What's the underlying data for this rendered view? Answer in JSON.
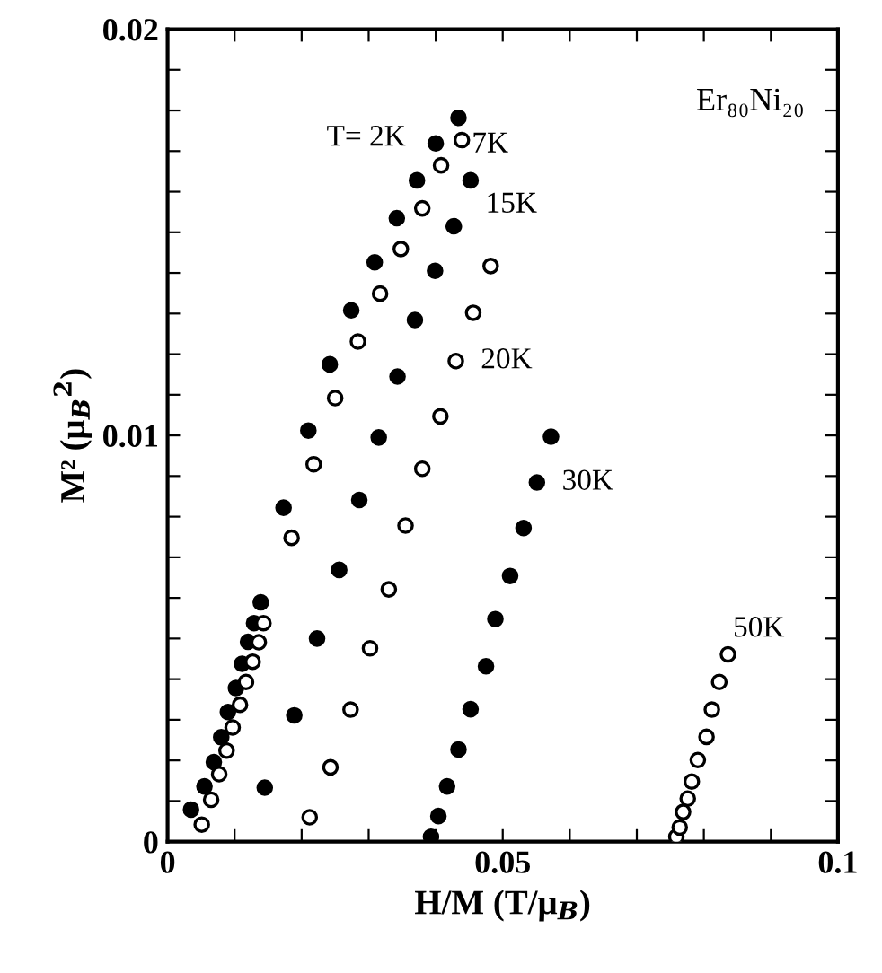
{
  "chart_data": {
    "type": "scatter",
    "xlabel": "H/M (T/μ$_{B}$)",
    "ylabel": "M² (μ$_{B}$$^{2}$)",
    "marker": "circle",
    "grid": false,
    "annotations": [
      "Er₈₀Ni₂₀"
    ],
    "xlim": [
      0,
      0.1
    ],
    "ylim": [
      0,
      0.02
    ],
    "xticks": [
      {
        "value": 0,
        "label": "0"
      },
      {
        "value": 0.01,
        "label": null
      },
      {
        "value": 0.02,
        "label": null
      },
      {
        "value": 0.03,
        "label": null
      },
      {
        "value": 0.04,
        "label": null
      },
      {
        "value": 0.05,
        "label": "0.05"
      },
      {
        "value": 0.06,
        "label": null
      },
      {
        "value": 0.07,
        "label": null
      },
      {
        "value": 0.08,
        "label": null
      },
      {
        "value": 0.09,
        "label": null
      },
      {
        "value": 0.1,
        "label": "0.1"
      }
    ],
    "yticks": [
      {
        "value": 0,
        "label": "0"
      },
      {
        "value": 0.001,
        "label": null
      },
      {
        "value": 0.002,
        "label": null
      },
      {
        "value": 0.003,
        "label": null
      },
      {
        "value": 0.004,
        "label": null
      },
      {
        "value": 0.005,
        "label": null
      },
      {
        "value": 0.006,
        "label": null
      },
      {
        "value": 0.007,
        "label": null
      },
      {
        "value": 0.008,
        "label": null
      },
      {
        "value": 0.009,
        "label": null
      },
      {
        "value": 0.01,
        "label": "0.01"
      },
      {
        "value": 0.011,
        "label": null
      },
      {
        "value": 0.012,
        "label": null
      },
      {
        "value": 0.013,
        "label": null
      },
      {
        "value": 0.014,
        "label": null
      },
      {
        "value": 0.015,
        "label": null
      },
      {
        "value": 0.016,
        "label": null
      },
      {
        "value": 0.017,
        "label": null
      },
      {
        "value": 0.018,
        "label": null
      },
      {
        "value": 0.019,
        "label": null
      },
      {
        "value": 0.02,
        "label": "0.02"
      }
    ],
    "series": [
      {
        "name": "T= 2K",
        "color": "#000000",
        "x": [
          0.0035,
          0.0055,
          0.0069,
          0.008,
          0.009,
          0.0102,
          0.0111,
          0.012,
          0.0129,
          0.0139,
          0.0173,
          0.021,
          0.0242,
          0.0274,
          0.0309,
          0.0342,
          0.0372,
          0.04,
          0.0434
        ],
        "values": [
          0.00079,
          0.00136,
          0.00196,
          0.00257,
          0.00319,
          0.00378,
          0.00438,
          0.00492,
          0.00538,
          0.00589,
          0.00822,
          0.01012,
          0.01175,
          0.01308,
          0.01426,
          0.01535,
          0.01628,
          0.01719,
          0.01782
        ]
      },
      {
        "name": "7K",
        "color": "#ffffff",
        "x": [
          0.0051,
          0.0065,
          0.0077,
          0.0088,
          0.0097,
          0.0108,
          0.0117,
          0.0127,
          0.0136,
          0.0143,
          0.0185,
          0.0218,
          0.025,
          0.0284,
          0.0317,
          0.0348,
          0.038,
          0.0408,
          0.0439
        ],
        "values": [
          0.00042,
          0.00103,
          0.00166,
          0.00224,
          0.00281,
          0.00337,
          0.00393,
          0.00443,
          0.00491,
          0.00538,
          0.00748,
          0.00929,
          0.01092,
          0.01231,
          0.01349,
          0.01459,
          0.01559,
          0.01665,
          0.01727
        ]
      },
      {
        "name": "15K",
        "color": "#000000",
        "x": [
          0.0145,
          0.0189,
          0.0223,
          0.0256,
          0.0286,
          0.0315,
          0.0343,
          0.0369,
          0.0399,
          0.0427,
          0.0452
        ],
        "values": [
          0.00133,
          0.00311,
          0.005,
          0.00669,
          0.00841,
          0.00995,
          0.01145,
          0.01284,
          0.01405,
          0.01515,
          0.01628
        ]
      },
      {
        "name": "20K",
        "color": "#ffffff",
        "x": [
          0.0212,
          0.0243,
          0.0273,
          0.0302,
          0.033,
          0.0355,
          0.038,
          0.0407,
          0.043,
          0.0456,
          0.0482
        ],
        "values": [
          0.0006,
          0.00183,
          0.00325,
          0.00476,
          0.00621,
          0.00778,
          0.00918,
          0.01047,
          0.01183,
          0.01302,
          0.01417
        ]
      },
      {
        "name": "30K",
        "color": "#000000",
        "x": [
          0.0393,
          0.0404,
          0.0417,
          0.0434,
          0.0452,
          0.0475,
          0.0489,
          0.0511,
          0.0531,
          0.0551,
          0.0572
        ],
        "values": [
          0.00012,
          0.00063,
          0.00136,
          0.00227,
          0.00326,
          0.00432,
          0.00548,
          0.00654,
          0.00772,
          0.00884,
          0.00997
        ]
      },
      {
        "name": "50K",
        "color": "#ffffff",
        "x": [
          0.0759,
          0.0764,
          0.0769,
          0.0776,
          0.0782,
          0.0791,
          0.0804,
          0.0812,
          0.0823,
          0.0836
        ],
        "values": [
          0.00012,
          0.00035,
          0.00073,
          0.00106,
          0.00148,
          0.00201,
          0.00258,
          0.00325,
          0.00393,
          0.00461
        ]
      }
    ]
  }
}
